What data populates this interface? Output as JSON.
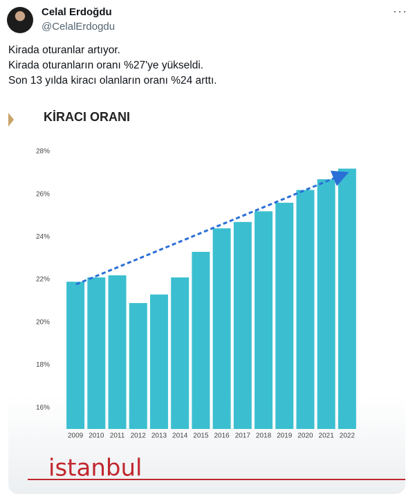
{
  "tweet": {
    "name": "Celal Erdoğdu",
    "handle": "@CelalErdogdu",
    "lines": [
      "Kirada oturanlar artıyor.",
      "Kirada oturanların oranı %27'ye yükseldi.",
      "Son 13 yılda kiracı olanların oranı %24 arttı."
    ],
    "logo": "istanbul"
  },
  "chart_data": {
    "type": "bar",
    "title": "KİRACI ORANI",
    "categories": [
      "2009",
      "2010",
      "2011",
      "2012",
      "2013",
      "2014",
      "2015",
      "2016",
      "2017",
      "2018",
      "2019",
      "2020",
      "2021",
      "2022"
    ],
    "values": [
      21.9,
      22.1,
      22.2,
      20.9,
      21.3,
      22.1,
      23.3,
      24.4,
      24.7,
      25.2,
      25.6,
      26.2,
      26.7,
      27.2
    ],
    "color": "#3bbfd0",
    "ylim": [
      15,
      28.5
    ],
    "yticks": [
      {
        "value": 16,
        "label": "16%"
      },
      {
        "value": 18,
        "label": "18%"
      },
      {
        "value": 20,
        "label": "20%"
      },
      {
        "value": 22,
        "label": "22%"
      },
      {
        "value": 24,
        "label": "24%"
      },
      {
        "value": 26,
        "label": "26%"
      },
      {
        "value": 28,
        "label": "28%"
      }
    ],
    "grid": false
  }
}
